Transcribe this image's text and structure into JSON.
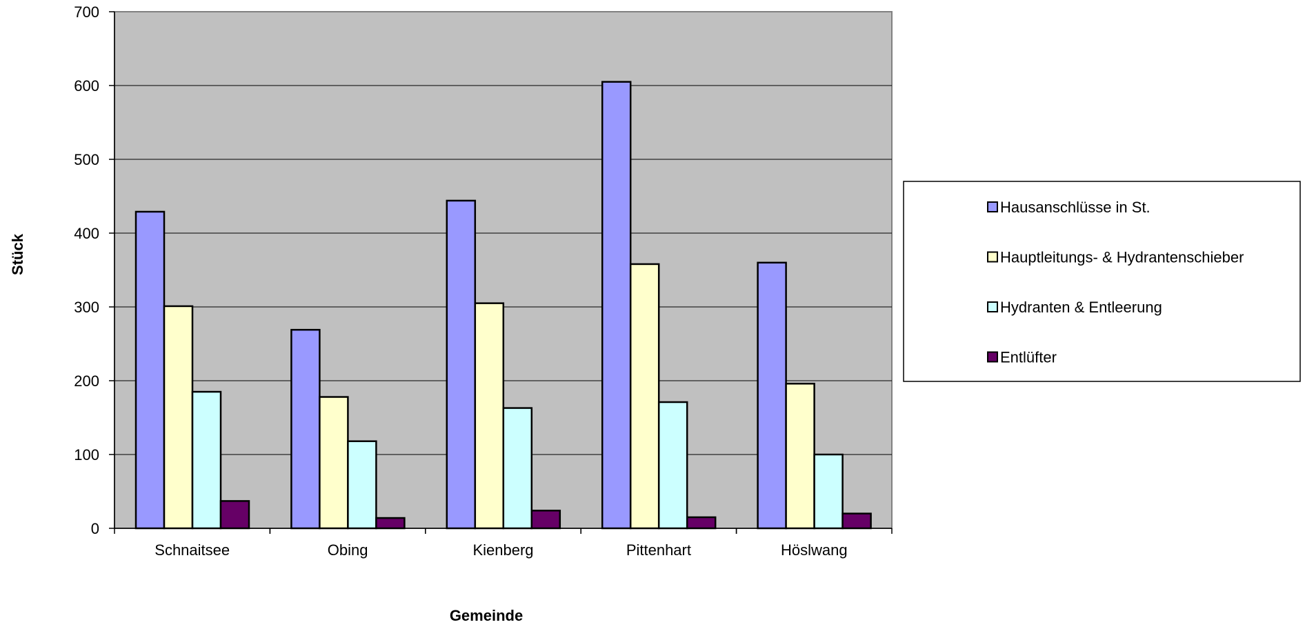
{
  "chart_data": {
    "type": "bar",
    "title": "",
    "xlabel": "Gemeinde",
    "ylabel": "Stück",
    "ylim": [
      0,
      700
    ],
    "yticks": [
      0,
      100,
      200,
      300,
      400,
      500,
      600,
      700
    ],
    "grid": true,
    "legend_position": "right",
    "categories": [
      "Schnaitsee",
      "Obing",
      "Kienberg",
      "Pittenhart",
      "Höslwang"
    ],
    "series": [
      {
        "name": "Hausanschlüsse in St.",
        "color": "#9999ff",
        "values": [
          429,
          269,
          444,
          605,
          360
        ]
      },
      {
        "name": "Hauptleitungs- & Hydrantenschieber",
        "color": "#ffffcc",
        "values": [
          301,
          178,
          305,
          358,
          196
        ]
      },
      {
        "name": "Hydranten & Entleerung",
        "color": "#ccffff",
        "values": [
          185,
          118,
          163,
          171,
          100
        ]
      },
      {
        "name": "Entlüfter",
        "color": "#660066",
        "values": [
          37,
          14,
          24,
          15,
          20
        ]
      }
    ],
    "plot_background": "#c0c0c0"
  }
}
